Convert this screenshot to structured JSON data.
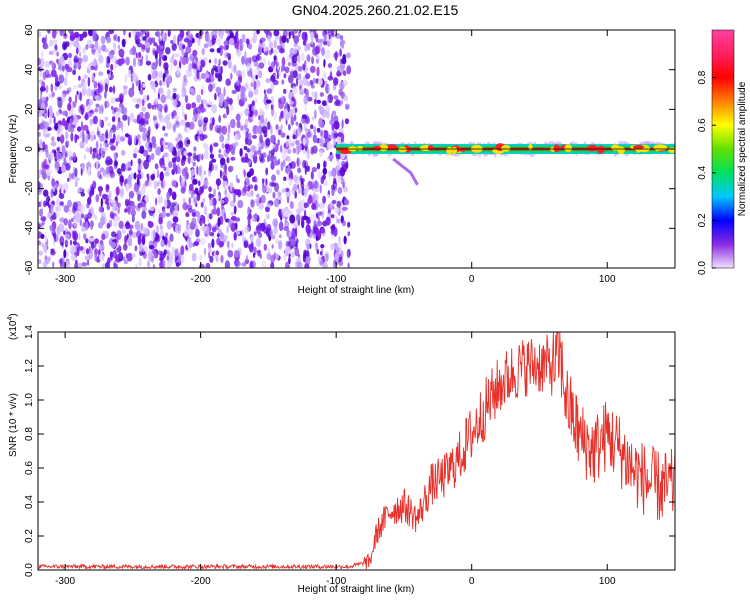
{
  "title": "GN04.2025.260.21.02.E15",
  "chart_data": [
    {
      "type": "heatmap",
      "xlabel": "Height of straight line (km)",
      "ylabel": "Frequency (Hz)",
      "xlim": [
        -320,
        150
      ],
      "ylim": [
        -60,
        60
      ],
      "xticks": [
        -300,
        -200,
        -100,
        0,
        100
      ],
      "yticks": [
        60,
        40,
        20,
        0,
        -20,
        -40,
        -60
      ],
      "noise_region_x": [
        -320,
        -95
      ],
      "signal_line": {
        "x_start": -100,
        "x_end": 150,
        "frequency_hz": 0
      },
      "colorbar": {
        "label": "Normalized spectral amplitude",
        "range": [
          0.0,
          1.0
        ],
        "ticks": [
          0.0,
          0.2,
          0.4,
          0.6,
          0.8
        ],
        "colors": [
          "#f0e0ff",
          "#8a2be2",
          "#0000ff",
          "#00c8ff",
          "#00e060",
          "#60e000",
          "#ffff00",
          "#ff8000",
          "#ff0000",
          "#ff2060",
          "#ff40a0"
        ]
      }
    },
    {
      "type": "line",
      "xlabel": "Height of straight line (km)",
      "ylabel": "SNR (10 * v/v)",
      "y_multiplier": "(x10",
      "y_multiplier_exp": "4",
      "y_multiplier_close": ")",
      "xlim": [
        -320,
        150
      ],
      "ylim": [
        0.0,
        1.4
      ],
      "xticks": [
        -300,
        -200,
        -100,
        0,
        100
      ],
      "yticks": [
        "0.0",
        "0.2",
        "0.4",
        "0.6",
        "0.8",
        "1.0",
        "1.2",
        "1.4"
      ],
      "series": [
        {
          "color": "#e8302a",
          "x": [
            -320,
            -200,
            -90,
            -75,
            -70,
            -60,
            -50,
            -40,
            -30,
            -20,
            -10,
            0,
            10,
            20,
            30,
            40,
            50,
            60,
            65,
            70,
            80,
            90,
            100,
            110,
            120,
            130,
            140,
            150
          ],
          "values": [
            0.02,
            0.02,
            0.02,
            0.05,
            0.22,
            0.35,
            0.38,
            0.3,
            0.5,
            0.55,
            0.65,
            0.8,
            0.95,
            1.08,
            1.16,
            1.2,
            1.21,
            1.2,
            1.26,
            1.0,
            0.78,
            0.7,
            0.8,
            0.7,
            0.58,
            0.52,
            0.48,
            0.5
          ]
        }
      ]
    }
  ]
}
